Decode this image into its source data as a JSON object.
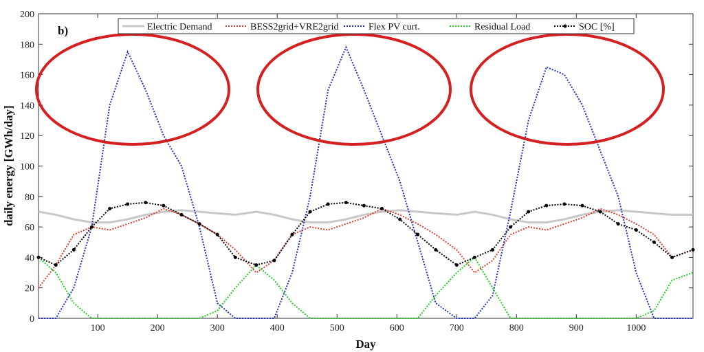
{
  "chart_data": {
    "type": "line",
    "panel_label": "b)",
    "xlabel": "Day",
    "ylabel": "daily energy [GWh/day]",
    "xlim": [
      1,
      1095
    ],
    "ylim": [
      0,
      200
    ],
    "xticks": [
      100,
      200,
      300,
      400,
      500,
      600,
      700,
      800,
      900,
      1000
    ],
    "yticks": [
      0,
      20,
      40,
      60,
      80,
      100,
      120,
      140,
      160,
      180,
      200
    ],
    "grid": false,
    "legend_position": "top",
    "series": [
      {
        "name": "Electric Demand",
        "color": "#c8c8c8",
        "style": "solid",
        "x": [
          1,
          30,
          60,
          90,
          120,
          150,
          180,
          210,
          240,
          270,
          300,
          330,
          365,
          395,
          425,
          455,
          485,
          515,
          545,
          575,
          605,
          635,
          665,
          700,
          730,
          760,
          790,
          820,
          850,
          880,
          910,
          940,
          970,
          1000,
          1030,
          1060,
          1095
        ],
        "y": [
          70,
          68,
          65,
          63,
          63,
          65,
          68,
          70,
          71,
          70,
          69,
          68,
          70,
          68,
          65,
          63,
          63,
          65,
          68,
          70,
          71,
          70,
          69,
          68,
          70,
          68,
          65,
          63,
          63,
          65,
          68,
          70,
          71,
          70,
          69,
          68,
          68
        ]
      },
      {
        "name": "BESS2grid+VRE2grid",
        "color": "#dd3a2e",
        "style": "dotted",
        "x": [
          1,
          30,
          60,
          90,
          120,
          150,
          180,
          210,
          240,
          270,
          300,
          330,
          365,
          395,
          425,
          455,
          485,
          515,
          545,
          575,
          605,
          635,
          665,
          700,
          730,
          760,
          790,
          820,
          850,
          880,
          910,
          940,
          970,
          1000,
          1030,
          1060,
          1095
        ],
        "y": [
          20,
          35,
          55,
          60,
          58,
          62,
          66,
          72,
          68,
          62,
          55,
          45,
          30,
          38,
          55,
          60,
          58,
          62,
          66,
          72,
          68,
          62,
          55,
          45,
          30,
          38,
          55,
          60,
          58,
          62,
          66,
          72,
          68,
          62,
          55,
          40,
          45
        ]
      },
      {
        "name": "Flex PV curt.",
        "color": "#1f2fc0",
        "style": "dotted",
        "x": [
          1,
          30,
          60,
          90,
          120,
          150,
          180,
          210,
          240,
          270,
          300,
          330,
          365,
          395,
          425,
          455,
          485,
          515,
          545,
          575,
          605,
          635,
          665,
          700,
          730,
          760,
          790,
          820,
          850,
          880,
          910,
          940,
          970,
          1000,
          1030,
          1060,
          1095
        ],
        "y": [
          0,
          0,
          20,
          60,
          140,
          175,
          150,
          120,
          100,
          60,
          10,
          0,
          0,
          0,
          30,
          80,
          150,
          178,
          150,
          120,
          90,
          50,
          10,
          0,
          0,
          15,
          70,
          130,
          165,
          160,
          140,
          110,
          80,
          30,
          0,
          0,
          0
        ]
      },
      {
        "name": "Residual Load",
        "color": "#22cc22",
        "style": "dotted",
        "x": [
          1,
          30,
          60,
          90,
          120,
          150,
          180,
          210,
          240,
          270,
          300,
          330,
          365,
          395,
          425,
          455,
          485,
          515,
          545,
          575,
          605,
          635,
          665,
          700,
          730,
          760,
          790,
          820,
          850,
          880,
          910,
          940,
          970,
          1000,
          1030,
          1060,
          1095
        ],
        "y": [
          40,
          30,
          10,
          0,
          0,
          0,
          0,
          0,
          0,
          0,
          5,
          20,
          35,
          25,
          10,
          0,
          0,
          0,
          0,
          0,
          0,
          0,
          15,
          30,
          40,
          20,
          0,
          0,
          0,
          0,
          0,
          0,
          0,
          0,
          5,
          25,
          30
        ]
      },
      {
        "name": "SOC [%]",
        "color": "#000000",
        "style": "dotted-marker",
        "x": [
          1,
          30,
          60,
          90,
          120,
          150,
          180,
          210,
          240,
          270,
          300,
          330,
          365,
          395,
          425,
          455,
          485,
          515,
          545,
          575,
          605,
          635,
          665,
          700,
          730,
          760,
          790,
          820,
          850,
          880,
          910,
          940,
          970,
          1000,
          1030,
          1060,
          1095
        ],
        "y": [
          40,
          35,
          45,
          60,
          72,
          75,
          76,
          74,
          68,
          62,
          55,
          40,
          35,
          38,
          55,
          70,
          75,
          76,
          74,
          72,
          65,
          55,
          45,
          35,
          40,
          45,
          60,
          70,
          74,
          75,
          74,
          70,
          62,
          58,
          50,
          40,
          45
        ]
      }
    ],
    "annotations": [
      {
        "type": "ellipse",
        "color": "#d42020",
        "cx": 193,
        "cy": 130,
        "rx": 140,
        "ry": 80
      },
      {
        "type": "ellipse",
        "color": "#d42020",
        "cx": 515,
        "cy": 130,
        "rx": 140,
        "ry": 80
      },
      {
        "type": "ellipse",
        "color": "#d42020",
        "cx": 825,
        "cy": 130,
        "rx": 140,
        "ry": 80
      }
    ]
  }
}
